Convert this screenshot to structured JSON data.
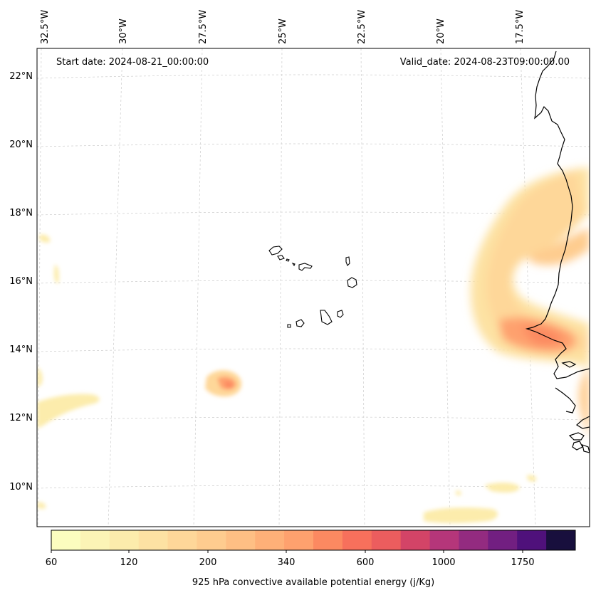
{
  "header": {
    "start_date": "Start date: 2024-08-21_00:00:00",
    "valid_date": "Valid_date: 2024-08-23T09:00:00.00"
  },
  "lon_labels": [
    "32.5°W",
    "30°W",
    "27.5°W",
    "25°W",
    "22.5°W",
    "20°W",
    "17.5°W"
  ],
  "lat_labels": [
    "22°N",
    "20°N",
    "18°N",
    "16°N",
    "14°N",
    "12°N",
    "10°N"
  ],
  "colorbar": {
    "title": "925 hPa convective available potential energy (j/Kg)",
    "tick_labels": [
      "60",
      "120",
      "200",
      "340",
      "600",
      "1000",
      "1750"
    ],
    "colors": [
      "#fcfdbf",
      "#fcf4b6",
      "#fcecac",
      "#fde2a3",
      "#fed799",
      "#fecc8f",
      "#febf84",
      "#feb078",
      "#fea16e",
      "#fc8961",
      "#f7705c",
      "#ec5d5e",
      "#d34467",
      "#b5367a",
      "#932b80",
      "#721f81",
      "#4f117b",
      "#180f3d"
    ]
  }
}
